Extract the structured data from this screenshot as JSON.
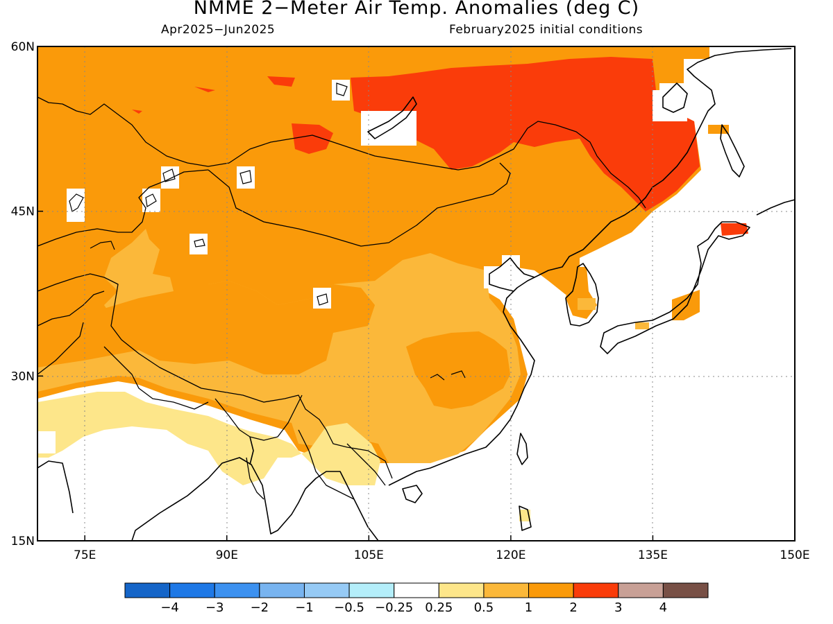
{
  "title": "NMME 2−Meter Air Temp. Anomalies (deg C)",
  "period": "Apr2025−Jun2025",
  "initial_conditions": "February2025 initial conditions",
  "map": {
    "lon_range": [
      70,
      150
    ],
    "lat_range": [
      15,
      60
    ],
    "lon_ticks": [
      {
        "value": 75,
        "label": "75E"
      },
      {
        "value": 90,
        "label": "90E"
      },
      {
        "value": 105,
        "label": "105E"
      },
      {
        "value": 120,
        "label": "120E"
      },
      {
        "value": 135,
        "label": "135E"
      },
      {
        "value": 150,
        "label": "150E"
      }
    ],
    "lat_ticks": [
      {
        "value": 60,
        "label": "60N"
      },
      {
        "value": 45,
        "label": "45N"
      },
      {
        "value": 30,
        "label": "30N"
      },
      {
        "value": 15,
        "label": "15N"
      }
    ],
    "grid": "dotted"
  },
  "colorbar": {
    "colors": [
      "#1565c8",
      "#1e78e6",
      "#3c91f0",
      "#78b4f0",
      "#96caf5",
      "#b4eefa",
      "#ffffff",
      "#fde68a",
      "#fbb83a",
      "#fa9a0a",
      "#fa3c0a",
      "#c8a096",
      "#785046"
    ],
    "labels": [
      "−4",
      "−3",
      "−2",
      "−1",
      "−0.5",
      "−0.25",
      "0.25",
      "0.5",
      "1",
      "2",
      "3",
      "4"
    ]
  }
}
